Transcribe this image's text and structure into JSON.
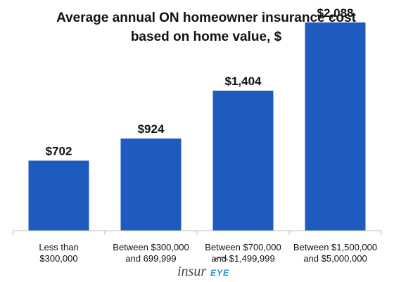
{
  "chart_data": {
    "type": "bar",
    "title": "Average annual ON homeowner insurance cost based on home value, $",
    "title_lines": [
      "Average annual ON homeowner insurance cost",
      "based on home value, $"
    ],
    "categories": [
      "Less than $300,000",
      "Between $300,000 and 699,999",
      "Between $700,000 and $1,499,999",
      "Between $1,500,000 and $5,000,000"
    ],
    "category_lines": [
      [
        "Less than",
        "$300,000"
      ],
      [
        "Between $300,000",
        "and 699,999"
      ],
      [
        "Between $700,000",
        "and $1,499,999"
      ],
      [
        "Between $1,500,000",
        "and $5,000,000"
      ]
    ],
    "values": [
      702,
      924,
      1404,
      2088
    ],
    "value_labels": [
      "$702",
      "$924",
      "$1,404",
      "$2,088"
    ],
    "ylim": [
      0,
      2200
    ],
    "xlabel": "",
    "ylabel": "",
    "bar_color": "#1f5bbf",
    "grid": false
  },
  "logo": {
    "text_insur": "insur",
    "text_eye": "EYE"
  }
}
